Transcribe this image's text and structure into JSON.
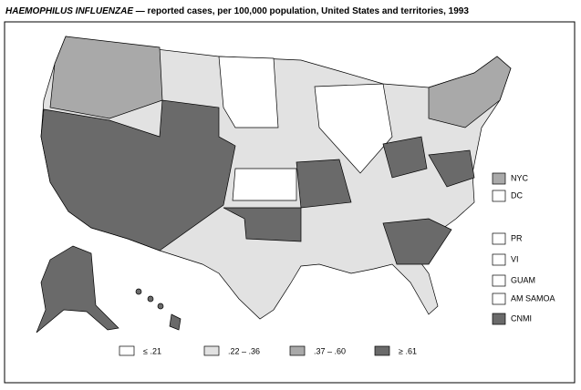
{
  "header": {
    "title_italic": "HAEMOPHILUS INFLUENZAE",
    "title_rest": "— reported cases, per 100,000 population, United States and territories, 1993"
  },
  "legend": [
    {
      "label": "≤ .21",
      "color": "#ffffff"
    },
    {
      "label": ".22 – .36",
      "color": "#e2e2e2"
    },
    {
      "label": ".37 – .60",
      "color": "#a9a9a9"
    },
    {
      "label": "≥ .61",
      "color": "#6a6a6a"
    }
  ],
  "territories": [
    {
      "label": "NYC",
      "color": "#a9a9a9"
    },
    {
      "label": "DC",
      "color": "#ffffff"
    },
    {
      "label": "PR",
      "color": "#ffffff"
    },
    {
      "label": "VI",
      "color": "#ffffff"
    },
    {
      "label": "GUAM",
      "color": "#ffffff"
    },
    {
      "label": "AM SAMOA",
      "color": "#ffffff"
    },
    {
      "label": "CNMI",
      "color": "#6a6a6a"
    }
  ]
}
